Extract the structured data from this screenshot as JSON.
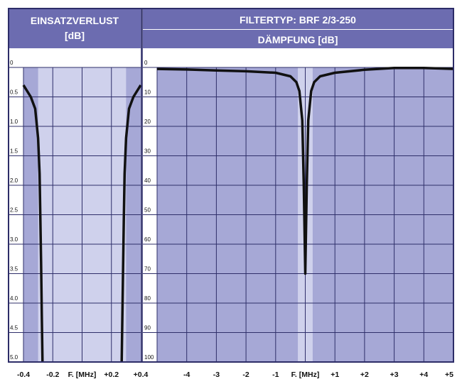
{
  "colors": {
    "header": "#6c6cb0",
    "frame": "#2d2d68",
    "grid": "#2f2f6a",
    "plot_fill": "#a6a8d6",
    "passband_fill": "#cfd1ec",
    "curve": "#111111"
  },
  "left_panel": {
    "title": "EINSATZVERLUST",
    "unit": "[dB]",
    "y_ticks": [
      "0",
      "0.5",
      "1.0",
      "1.5",
      "2.0",
      "2.5",
      "3.0",
      "3.5",
      "4.0",
      "4.5",
      "5.0"
    ],
    "x_ticks": [
      "-0.4",
      "-0.2",
      "F. [MHz]",
      "+0.2",
      "+0.4"
    ]
  },
  "right_panel": {
    "title": "FILTERTYP: BRF 2/3-250",
    "subtitle": "DÄMPFUNG [dB]",
    "y_ticks": [
      "0",
      "10",
      "20",
      "30",
      "40",
      "50",
      "60",
      "70",
      "80",
      "90",
      "100"
    ],
    "x_ticks": [
      "-4",
      "-3",
      "-2",
      "-1",
      "F. [MHz]",
      "+1",
      "+2",
      "+3",
      "+4",
      "+5"
    ]
  },
  "chart_data": [
    {
      "type": "line",
      "title": "EINSATZVERLUST [dB]",
      "xlabel": "F. [MHz]",
      "ylabel": "[dB]",
      "xlim": [
        -0.4,
        0.4
      ],
      "ylim": [
        0,
        5.0
      ],
      "y_inverted": true,
      "grid": true,
      "series": [
        {
          "x": [
            -0.4,
            -0.35,
            -0.32,
            -0.3,
            -0.29,
            -0.285,
            -0.28,
            -0.275,
            -0.27
          ],
          "y": [
            0.3,
            0.5,
            0.7,
            1.2,
            1.8,
            2.5,
            3.3,
            4.2,
            5.0
          ]
        },
        {
          "x": [
            0.27,
            0.275,
            0.28,
            0.285,
            0.29,
            0.3,
            0.32,
            0.35,
            0.4
          ],
          "y": [
            5.0,
            4.2,
            3.3,
            2.5,
            1.8,
            1.2,
            0.7,
            0.5,
            0.3
          ]
        }
      ]
    },
    {
      "type": "line",
      "title": "FILTERTYP: BRF 2/3-250",
      "xlabel": "F. [MHz]",
      "ylabel": "DÄMPFUNG [dB]",
      "xlim": [
        -5,
        5
      ],
      "ylim": [
        0,
        100
      ],
      "y_inverted": true,
      "grid": true,
      "series": [
        {
          "x": [
            -5,
            -4,
            -3,
            -2,
            -1,
            -0.5,
            -0.3,
            -0.2,
            -0.1,
            -0.05,
            0,
            0.05,
            0.1,
            0.2,
            0.3,
            0.5,
            1,
            2,
            3,
            4,
            5
          ],
          "y": [
            0.5,
            0.7,
            1.0,
            1.3,
            1.8,
            3.0,
            5.0,
            8.0,
            18.0,
            40.0,
            70.0,
            40.0,
            18.0,
            8.0,
            5.0,
            3.0,
            1.8,
            0.8,
            0.2,
            0.2,
            0.5
          ]
        }
      ]
    }
  ]
}
